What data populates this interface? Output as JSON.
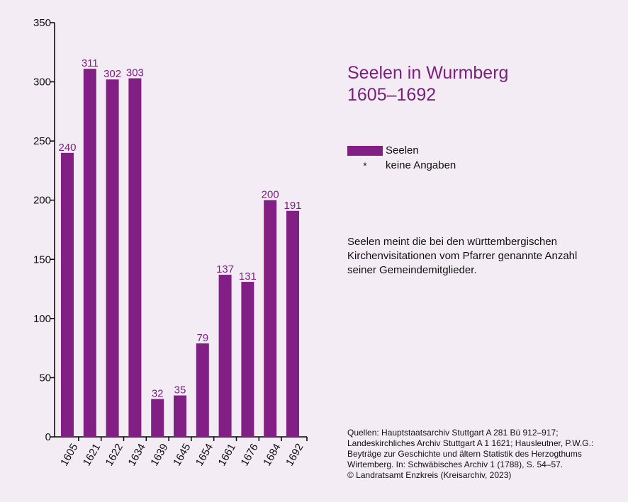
{
  "colors": {
    "bar": "#821f84",
    "accent": "#7c1f80",
    "background": "#f4ecf5"
  },
  "chart_data": {
    "type": "bar",
    "title_lines": [
      "Seelen in Wurmberg",
      "1605–1692"
    ],
    "categories": [
      "1605",
      "1621",
      "1622",
      "1634",
      "1639",
      "1645",
      "1654",
      "1661",
      "1676",
      "1684",
      "1692"
    ],
    "series": [
      {
        "name": "Seelen",
        "values": [
          240,
          311,
          302,
          303,
          32,
          35,
          79,
          137,
          131,
          200,
          191
        ]
      }
    ],
    "ylim": [
      0,
      350
    ],
    "yticks": [
      0,
      50,
      100,
      150,
      200,
      250,
      300,
      350
    ],
    "grid": false,
    "legend_position": "right"
  },
  "legend": {
    "seelen": "Seelen",
    "star_symbol": "*",
    "star_label": "keine Angaben"
  },
  "note": "Seelen meint die bei den württembergischen Kirchenvisitationen vom Pfarrer genannte Anzahl seiner Gemeindemitglieder.",
  "sources": [
    "Quellen: Hauptstaatsarchiv Stuttgart A 281 Bü 912–917;",
    "Landeskirchliches Archiv Stuttgart A 1 1621; Hausleutner, P.W.G.:",
    "Beyträge zur Geschichte und ältern Statistik des Herzogthums",
    "Wirtemberg. In: Schwäbisches Archiv 1 (1788), S. 54–57.",
    "© Landratsamt Enzkreis (Kreisarchiv, 2023)"
  ]
}
